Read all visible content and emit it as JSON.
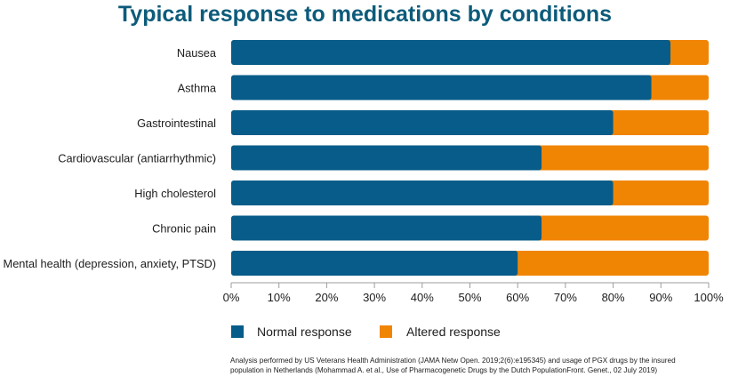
{
  "colors": {
    "title": "#0d5b7a",
    "normal": "#075c89",
    "altered": "#f08504",
    "text": "#1d1d1d",
    "axis": "#9c9c9c"
  },
  "chart_data": {
    "type": "bar",
    "orientation": "horizontal",
    "stacked": true,
    "title": "Typical response to medications by conditions",
    "categories": [
      "Nausea",
      "Asthma",
      "Gastrointestinal",
      "Cardiovascular (antiarrhythmic)",
      "High cholesterol",
      "Chronic pain",
      "Mental health (depression, anxiety, PTSD)"
    ],
    "series": [
      {
        "name": "Normal response",
        "values": [
          92,
          88,
          80,
          65,
          80,
          65,
          60
        ]
      },
      {
        "name": "Altered response",
        "values": [
          8,
          12,
          20,
          35,
          20,
          35,
          40
        ]
      }
    ],
    "xlim": [
      0,
      100
    ],
    "xticks": [
      0,
      10,
      20,
      30,
      40,
      50,
      60,
      70,
      80,
      90,
      100
    ],
    "xtick_labels": [
      "0%",
      "10%",
      "20%",
      "30%",
      "40%",
      "50%",
      "60%",
      "70%",
      "80%",
      "90%",
      "100%"
    ],
    "grid": false,
    "legend_position": "bottom-left"
  },
  "footnote": {
    "line1": "Analysis performed by US Veterans Health Administration (JAMA Netw Open. 2019;2(6):e195345) and usage of PGX drugs by the insured",
    "line2": "population in Netherlands (Mohammad A. et al., Use of Pharmacogenetic Drugs by the Dutch PopulationFront. Genet., 02 July 2019)"
  }
}
